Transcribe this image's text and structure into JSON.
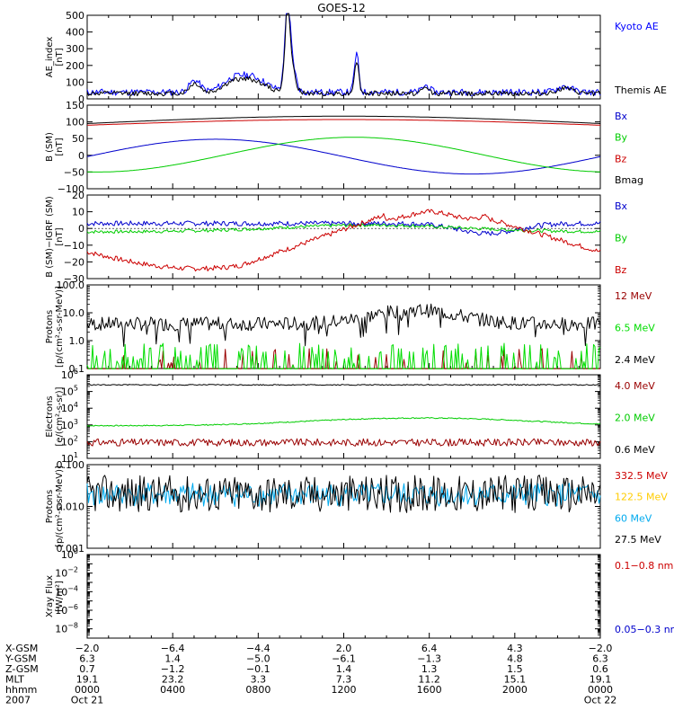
{
  "title": "GOES-12",
  "panels": [
    {
      "id": "ae",
      "ylabel": [
        "AE_index",
        "[nT]"
      ],
      "scale": "linear",
      "ylim": [
        0,
        500
      ],
      "ticks": [
        0,
        100,
        200,
        300,
        400,
        500
      ],
      "tick_labels": [
        "0",
        "100",
        "200",
        "300",
        "400",
        "500"
      ],
      "zero_line": false,
      "series": [
        {
          "name": "Kyoto AE",
          "color": "#0000ff",
          "shape": "ae",
          "base": 30,
          "params": {
            "seed": 11,
            "noise": 0.5,
            "amp": 1.0
          }
        },
        {
          "name": "Themis AE",
          "color": "#000000",
          "shape": "ae",
          "base": 25,
          "params": {
            "seed": 12,
            "noise": 0.25,
            "amp": 0.85
          }
        }
      ]
    },
    {
      "id": "bsm",
      "ylabel": [
        "B (SM)",
        "[nT]"
      ],
      "scale": "linear",
      "ylim": [
        -100,
        150
      ],
      "ticks": [
        -100,
        -50,
        0,
        50,
        100,
        150
      ],
      "tick_labels": [
        "−100",
        "−50",
        "0",
        "50",
        "100",
        "150"
      ],
      "zero_line": false,
      "series": [
        {
          "name": "Bx",
          "color": "#0000cc",
          "shape": "bx"
        },
        {
          "name": "By",
          "color": "#00cc00",
          "shape": "by"
        },
        {
          "name": "Bz",
          "color": "#cc0000",
          "shape": "bz"
        },
        {
          "name": "Bmag",
          "color": "#000000",
          "shape": "bmag"
        }
      ]
    },
    {
      "id": "bdiff",
      "ylabel": [
        "B (SM)−IGRF (SM)",
        "[nT]"
      ],
      "scale": "linear",
      "ylim": [
        -30,
        20
      ],
      "ticks": [
        -30,
        -20,
        -10,
        0,
        10,
        20
      ],
      "tick_labels": [
        "−30",
        "−20",
        "−10",
        "0",
        "10",
        "20"
      ],
      "zero_line": true,
      "series": [
        {
          "name": "Bx",
          "color": "#0000cc",
          "shape": "dbx"
        },
        {
          "name": "By",
          "color": "#00cc00",
          "shape": "dby"
        },
        {
          "name": "Bz",
          "color": "#cc0000",
          "shape": "dbz"
        }
      ]
    },
    {
      "id": "protons_hi",
      "ylabel": [
        "Protons",
        "[p/(cm²-s-sr-MeV)]"
      ],
      "scale": "log",
      "ylim": [
        0.1,
        100
      ],
      "ticks": [
        0.1,
        1,
        10,
        100
      ],
      "tick_labels": [
        "0.1",
        "1.0",
        "10.0",
        "100.0"
      ],
      "zero_line": false,
      "series": [
        {
          "name": "12 MeV",
          "color": "#990000",
          "shape": "spike",
          "params": {
            "seed": 21,
            "floor": 0.1,
            "peak": 0.45,
            "prob": 0.1
          }
        },
        {
          "name": "6.5 MeV",
          "color": "#00dd00",
          "shape": "spike",
          "params": {
            "seed": 22,
            "floor": 0.1,
            "peak": 0.7,
            "prob": 0.3
          }
        },
        {
          "name": "2.4 MeV",
          "color": "#000000",
          "shape": "p24"
        }
      ]
    },
    {
      "id": "electrons",
      "ylabel": [
        "Electrons",
        "[e/(cm²-s-sr)]"
      ],
      "scale": "log",
      "ylim": [
        10,
        1000000
      ],
      "ticks": [
        10,
        100,
        1000,
        10000,
        100000,
        1000000
      ],
      "tick_labels": [
        "10",
        "10",
        "10",
        "10",
        "10",
        "10"
      ],
      "tick_exps": [
        "1",
        "2",
        "3",
        "4",
        "5",
        "6"
      ],
      "zero_line": false,
      "series": [
        {
          "name": "4.0 MeV",
          "color": "#990000",
          "shape": "noisy",
          "base": 90,
          "params": {
            "seed": 31,
            "jitter": 0.22
          }
        },
        {
          "name": "2.0 MeV",
          "color": "#00cc00",
          "shape": "e20"
        },
        {
          "name": "0.6 MeV",
          "color": "#000000",
          "shape": "noisy",
          "base": 250000,
          "params": {
            "seed": 33,
            "jitter": 0.03
          }
        }
      ]
    },
    {
      "id": "protons_lo",
      "ylabel": [
        "Protons",
        "[p/(cm²-s-sr-MeV)]"
      ],
      "scale": "log",
      "ylim": [
        0.001,
        0.1
      ],
      "ticks": [
        0.001,
        0.01,
        0.1
      ],
      "tick_labels": [
        "0.001",
        "0.010",
        "0.100"
      ],
      "zero_line": false,
      "series": [
        {
          "name": "332.5 MeV",
          "color": "#cc0000",
          "shape": "none"
        },
        {
          "name": "122.5 MeV",
          "color": "#ffcc00",
          "shape": "none"
        },
        {
          "name": "60 MeV",
          "color": "#00aaee",
          "shape": "noisy",
          "base": 0.019,
          "params": {
            "seed": 41,
            "jitter": 0.28
          }
        },
        {
          "name": "27.5 MeV",
          "color": "#000000",
          "shape": "noisy",
          "base": 0.02,
          "params": {
            "seed": 42,
            "jitter": 0.45
          }
        }
      ]
    },
    {
      "id": "xray",
      "ylabel": [
        "Xray Flux",
        "[W/m²]"
      ],
      "scale": "log",
      "ylim": [
        1e-09,
        1
      ],
      "ticks": [
        1e-09,
        1e-08,
        1e-07,
        1e-06,
        1e-05,
        0.0001,
        0.001,
        0.01,
        0.1,
        1
      ],
      "tick_labels": [
        "",
        "10",
        "",
        "10",
        "",
        "10",
        "",
        "10",
        "",
        "10"
      ],
      "tick_exps": [
        "",
        "−8",
        "",
        "−6",
        "",
        "−4",
        "",
        "−2",
        "",
        "0"
      ],
      "zero_line": false,
      "series": [
        {
          "name": "0.1−0.8 nm",
          "color": "#cc0000",
          "shape": "none"
        },
        {
          "name": "0.05−0.3 nm",
          "color": "#0000cc",
          "shape": "none"
        }
      ]
    }
  ],
  "x_axis": {
    "rows": [
      {
        "label": "X-GSM",
        "values": [
          "−2.0",
          "−6.4",
          "−4.4",
          "2.0",
          "6.4",
          "4.3",
          "−2.0"
        ]
      },
      {
        "label": "Y-GSM",
        "values": [
          "6.3",
          "1.4",
          "−5.0",
          "−6.1",
          "−1.3",
          "4.8",
          "6.3"
        ]
      },
      {
        "label": "Z-GSM",
        "values": [
          "0.7",
          "−1.2",
          "−0.1",
          "1.4",
          "1.3",
          "1.5",
          "0.6"
        ]
      },
      {
        "label": "MLT",
        "values": [
          "19.1",
          "23.2",
          "3.3",
          "7.3",
          "11.2",
          "15.1",
          "19.1"
        ]
      },
      {
        "label": "hhmm",
        "values": [
          "0000",
          "0400",
          "0800",
          "1200",
          "1600",
          "2000",
          "0000"
        ]
      },
      {
        "label": "2007",
        "values": [
          "Oct 21",
          "",
          "",
          "",
          "",
          "",
          "Oct 22"
        ]
      }
    ]
  }
}
